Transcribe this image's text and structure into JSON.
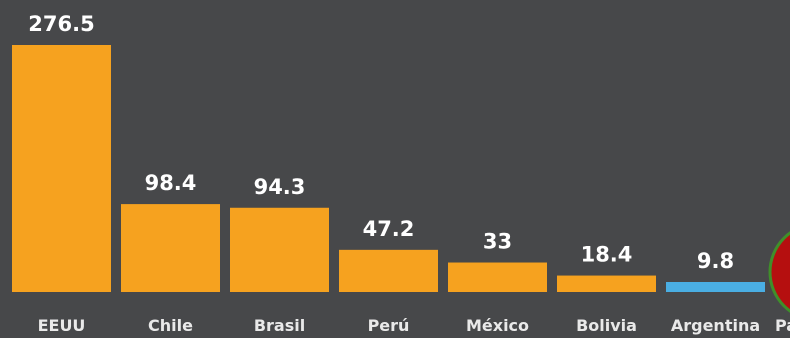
{
  "chart_data": {
    "type": "bar",
    "categories": [
      "EEUU",
      "Chile",
      "Brasil",
      "Perú",
      "México",
      "Bolivia",
      "Argentina",
      "Pa"
    ],
    "values": [
      276.5,
      98.4,
      94.3,
      47.2,
      33,
      18.4,
      9.8,
      null
    ],
    "value_labels": [
      "276.5",
      "98.4",
      "94.3",
      "47.2",
      "33",
      "18.4",
      "9.8",
      ""
    ],
    "highlight_category": "Argentina",
    "colors": {
      "bar": "#f6a21f",
      "highlight_bar": "#4aaee3",
      "background": "#47484a",
      "value_text": "#ffffff",
      "label_text": "#e9e9e9",
      "marker_fill": "#b50f0f",
      "marker_stroke": "#3f8f2a"
    },
    "ylim": [
      0,
      276.5
    ],
    "grid": false,
    "title": "",
    "xlabel": "",
    "ylabel": ""
  }
}
